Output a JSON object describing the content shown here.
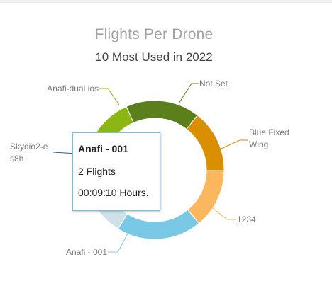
{
  "chart_data": {
    "type": "pie",
    "donut": true,
    "title": "Flights Per Drone",
    "subtitle": "10 Most Used in 2022",
    "slices": [
      {
        "label": "Not Set",
        "value": 2,
        "color": "#5b7f1a"
      },
      {
        "label": "Blue Fixed Wing",
        "value": 1.7,
        "color": "#d98f00"
      },
      {
        "label": "1234",
        "value": 1.6,
        "color": "#fbb75e"
      },
      {
        "label": "Anafi - 001",
        "value": 2.3,
        "color": "#78c8e6"
      },
      {
        "label": "Skydio2-es8h",
        "value": 2.1,
        "color": "#cfe0ea"
      },
      {
        "label": "Anafi-dual ios",
        "value": 1.9,
        "color": "#8cb614"
      }
    ],
    "legend": "none"
  },
  "labels": {
    "not_set": "Not Set",
    "blue_fixed_1": "Blue Fixed",
    "blue_fixed_2": "Wing",
    "num_1234": "1234",
    "anafi_001": "Anafi - 001",
    "skydio_1": "Skydio2-e",
    "skydio_2": "s8h",
    "anafi_dual": "Anafi-dual ios"
  },
  "tooltip": {
    "name": "Anafi - 001",
    "flights": "2 Flights",
    "duration": "00:09:10 Hours."
  }
}
